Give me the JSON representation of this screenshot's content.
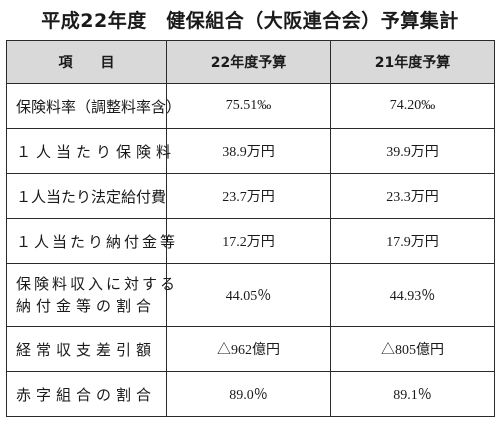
{
  "title": "平成22年度　健保組合（大阪連合会）予算集計",
  "headers": {
    "item": "項目",
    "fy22": "22年度予算",
    "fy21": "21年度予算"
  },
  "rows": [
    {
      "label": "保険料率（調整料率含）",
      "fy22": "75.51‰",
      "fy21": "74.20‰"
    },
    {
      "label": "１人当たり保険料",
      "fy22": "38.9万円",
      "fy21": "39.9万円"
    },
    {
      "label": "１人当たり法定給付費",
      "fy22": "23.7万円",
      "fy21": "23.3万円"
    },
    {
      "label": "１人当たり納付金等",
      "fy22": "17.2万円",
      "fy21": "17.9万円"
    },
    {
      "label_line1": "保険料収入に対する",
      "label_line2": "納付金等の割合",
      "fy22": "44.05％",
      "fy21": "44.93％"
    },
    {
      "label": "経常収支差引額",
      "fy22": "△962億円",
      "fy21": "△805億円"
    },
    {
      "label": "赤字組合の割合",
      "fy22": "89.0％",
      "fy21": "89.1％"
    }
  ]
}
